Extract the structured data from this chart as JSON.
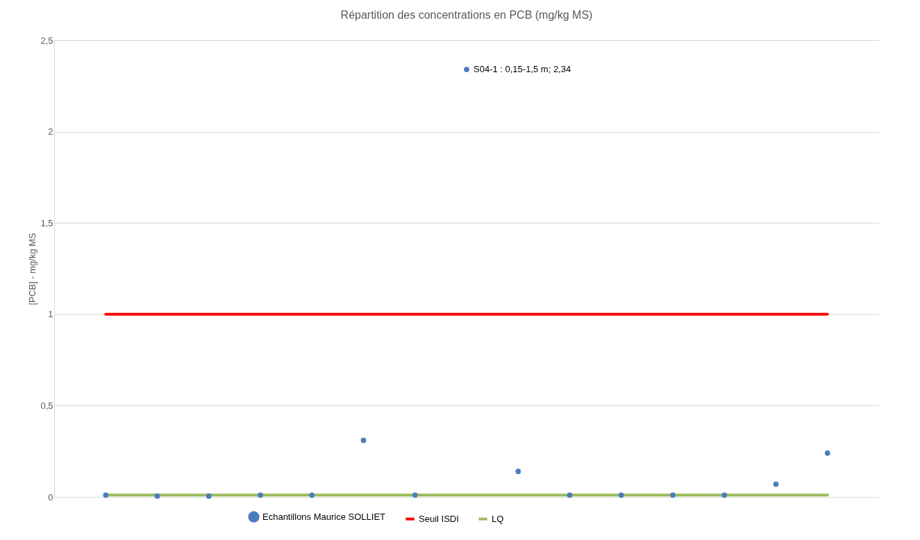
{
  "chart_data": {
    "type": "scatter",
    "title": "Répartition des concentrations en PCB (mg/kg MS)",
    "ylabel": "[PCB] - mg/kg MS",
    "categories": [
      null,
      null,
      null,
      null,
      null,
      null,
      null,
      null,
      null,
      null,
      null,
      null,
      null,
      null,
      null
    ],
    "series": [
      {
        "name": "Echantillons Maurice SOLLIET",
        "color": "#4a7ebb",
        "marker": "circle",
        "values": [
          0.01,
          0.005,
          0.005,
          0.01,
          0.01,
          0.31,
          0.01,
          2.34,
          0.14,
          0.01,
          0.01,
          0.01,
          0.01,
          0.07,
          0.24
        ],
        "value_labels": [
          null,
          null,
          null,
          null,
          null,
          null,
          null,
          "S04-1 : 0,15-1,5 m; 2,34",
          null,
          null,
          null,
          null,
          null,
          null,
          null
        ]
      },
      {
        "name": "Seuil ISDI",
        "type": "line",
        "marker": "none",
        "color": "#ff0000",
        "values": [
          1,
          1,
          1,
          1,
          1,
          1,
          1,
          1,
          1,
          1,
          1,
          1,
          1,
          1,
          1
        ]
      },
      {
        "name": "LQ",
        "type": "line",
        "marker": "none",
        "color": "#9bbb59",
        "values": [
          0.01,
          0.01,
          0.01,
          0.01,
          0.01,
          0.01,
          0.01,
          0.01,
          0.01,
          0.01,
          0.01,
          0.01,
          0.01,
          0.01,
          0.01
        ]
      }
    ],
    "ylim": [
      0,
      2.5
    ],
    "yticks": [
      0,
      {
        "value": 0.5,
        "label": "0,5"
      },
      1,
      {
        "value": 1.5,
        "label": "1,5"
      },
      2,
      {
        "value": 2.5,
        "label": "2,5"
      }
    ],
    "grid": "y",
    "legend": "bottom",
    "tick_labels": "y"
  }
}
